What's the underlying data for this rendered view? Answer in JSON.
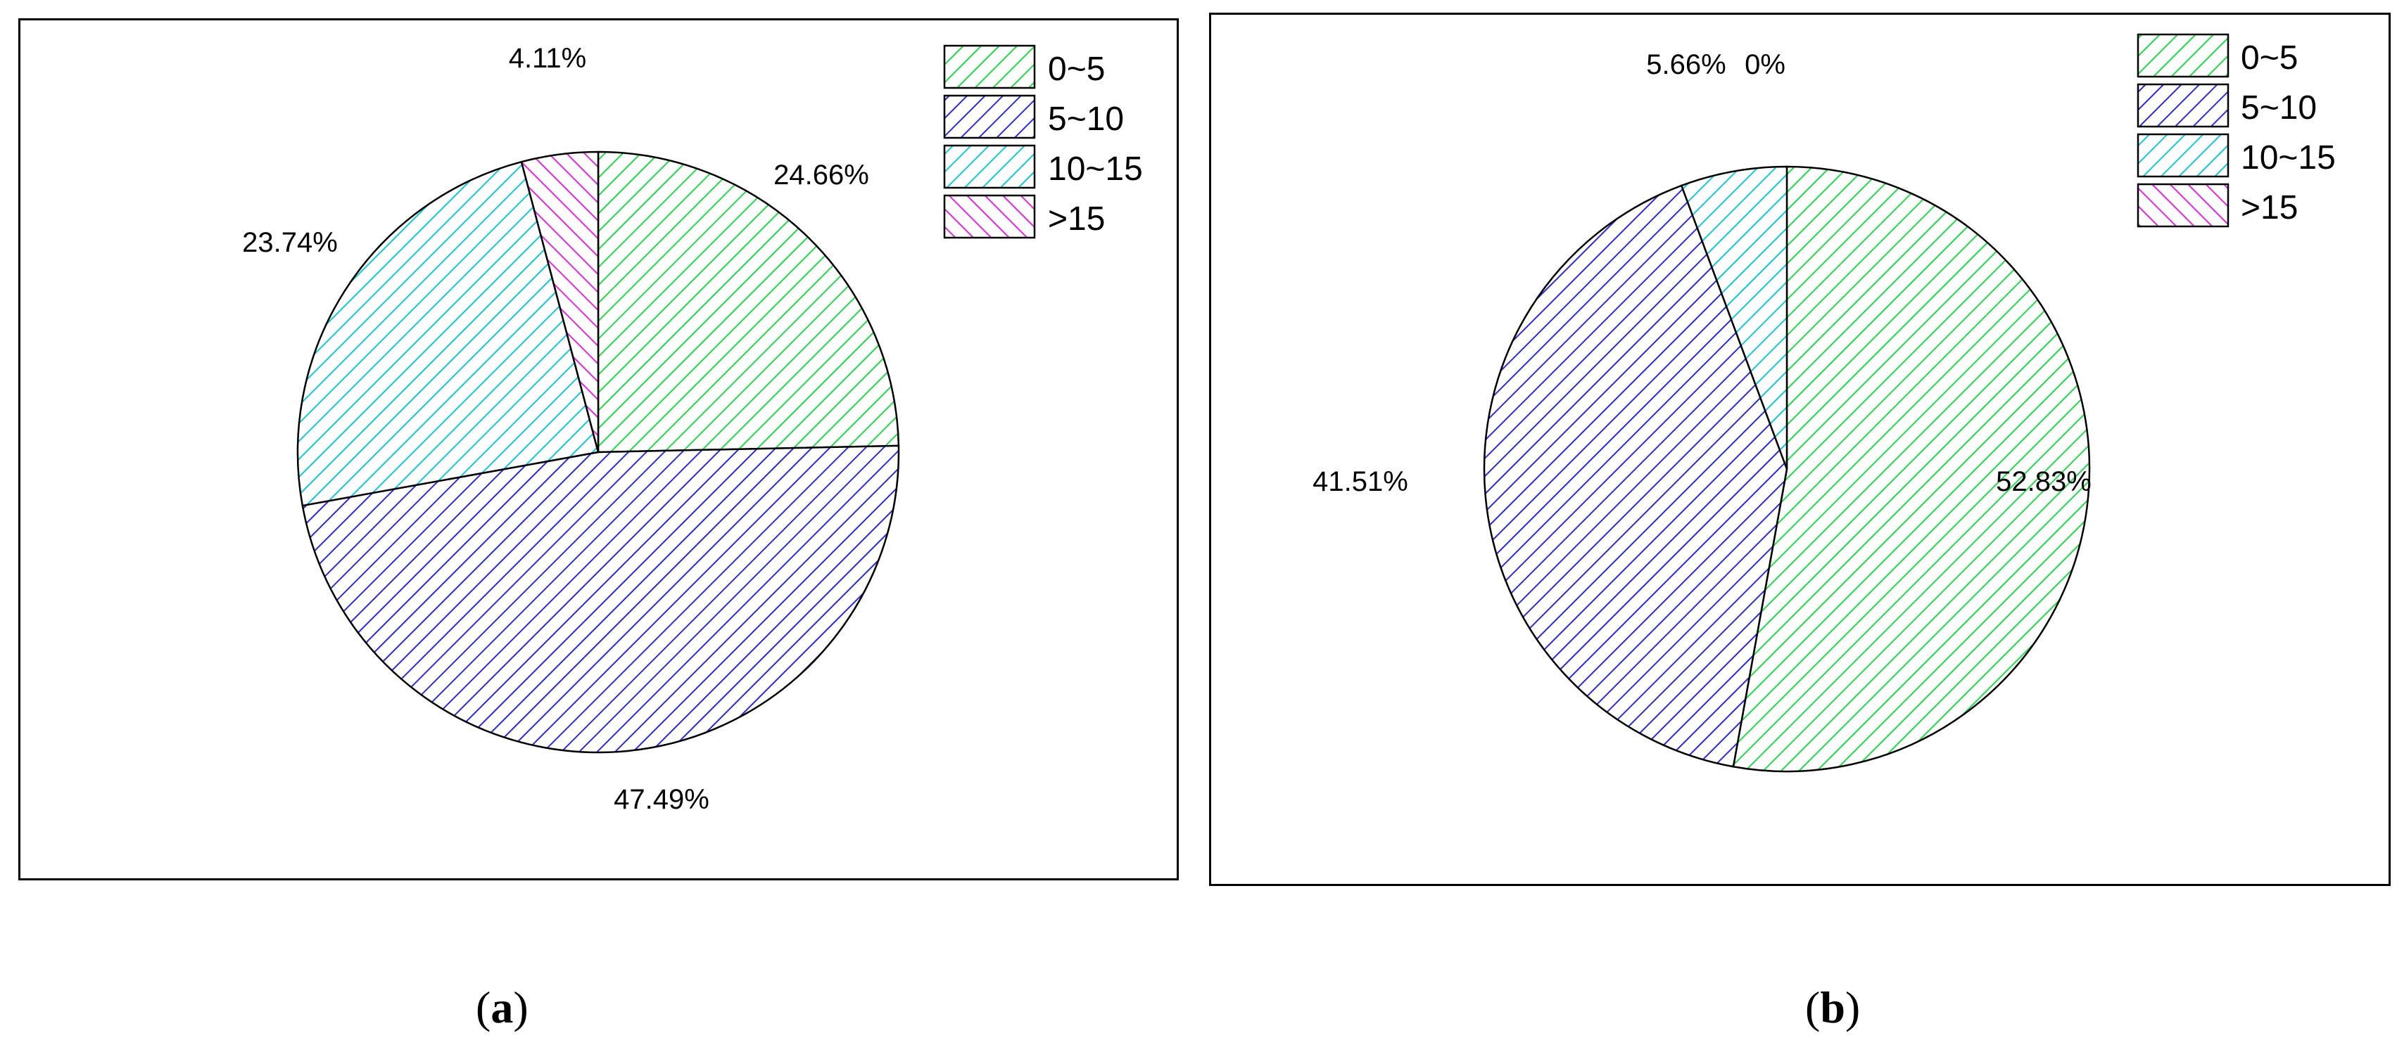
{
  "chart_data": [
    {
      "type": "pie",
      "panel": "a",
      "categories": [
        "0~5",
        "5~10",
        "10~15",
        ">15"
      ],
      "values": [
        24.66,
        47.49,
        23.74,
        4.11
      ],
      "labels": [
        "24.66%",
        "47.49%",
        "23.74%",
        "4.11%"
      ],
      "legend_position": "top-right",
      "caption": "a"
    },
    {
      "type": "pie",
      "panel": "b",
      "categories": [
        "0~5",
        "5~10",
        "10~15",
        ">15"
      ],
      "values": [
        52.83,
        41.51,
        5.66,
        0
      ],
      "labels": [
        "52.83%",
        "41.51%",
        "5.66%",
        "0%"
      ],
      "legend_position": "top-right",
      "caption": "b"
    }
  ],
  "colors": {
    "0~5": "#22d94a",
    "5~10": "#2b2bd6",
    "10~15": "#12c8d6",
    ">15": "#e02ae0"
  }
}
